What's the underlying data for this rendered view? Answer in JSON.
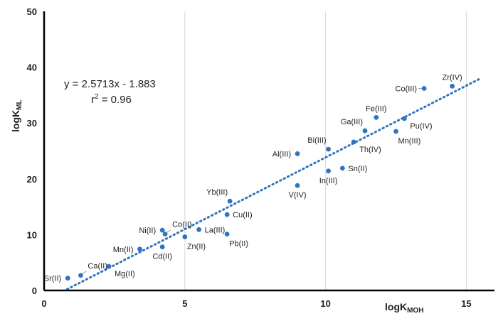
{
  "chart_data": {
    "type": "scatter",
    "xlabel_main": "logK",
    "xlabel_sub": "MOH",
    "ylabel_main": "logK",
    "ylabel_sub": "ML",
    "xlim": [
      0,
      16
    ],
    "ylim": [
      0,
      50
    ],
    "xticks": [
      0,
      5,
      10,
      15
    ],
    "yticks": [
      0,
      10,
      20,
      30,
      40,
      50
    ],
    "grid": "vertical",
    "equation": "y = 2.5713x - 1.883",
    "r2_main": "r",
    "r2_sup": "2",
    "r2_value": " = 0.96",
    "trendline": {
      "slope": 2.5713,
      "intercept": -1.883,
      "x_start": 0.82,
      "x_end": 15.53,
      "style": "dotted"
    },
    "colors": {
      "point": "#2e74c0",
      "trend": "#2e74c0",
      "axis": "#000000",
      "grid": "#d9d9d9"
    },
    "points": [
      {
        "label": "Sr(II)",
        "x": 0.84,
        "y": 2.2,
        "pos": "left"
      },
      {
        "label": "Ca(II)",
        "x": 1.3,
        "y": 2.7,
        "pos": "callout"
      },
      {
        "label": "Mg(II)",
        "x": 2.3,
        "y": 4.3,
        "pos": "right-below"
      },
      {
        "label": "Mn(II)",
        "x": 3.4,
        "y": 7.4,
        "pos": "left"
      },
      {
        "label": "Cd(II)",
        "x": 4.2,
        "y": 7.8,
        "pos": "below"
      },
      {
        "label": "Ni(II)",
        "x": 4.2,
        "y": 10.8,
        "pos": "left"
      },
      {
        "label": "Co(II)",
        "x": 4.3,
        "y": 10.1,
        "pos": "callout"
      },
      {
        "label": "Zn(II)",
        "x": 5.0,
        "y": 9.6,
        "pos": "below-right"
      },
      {
        "label": "La(III)",
        "x": 5.5,
        "y": 10.9,
        "pos": "right"
      },
      {
        "label": "Pb(II)",
        "x": 6.5,
        "y": 10.1,
        "pos": "below-right"
      },
      {
        "label": "Cu(II)",
        "x": 6.5,
        "y": 13.6,
        "pos": "right"
      },
      {
        "label": "Yb(III)",
        "x": 6.6,
        "y": 16.0,
        "pos": "above-left"
      },
      {
        "label": "V(IV)",
        "x": 9.0,
        "y": 18.8,
        "pos": "below"
      },
      {
        "label": "Al(III)",
        "x": 9.0,
        "y": 24.5,
        "pos": "left"
      },
      {
        "label": "Bi(III)",
        "x": 10.1,
        "y": 25.3,
        "pos": "above-left"
      },
      {
        "label": "In(III)",
        "x": 10.1,
        "y": 21.4,
        "pos": "below"
      },
      {
        "label": "Sn(II)",
        "x": 10.6,
        "y": 21.9,
        "pos": "right"
      },
      {
        "label": "Th(IV)",
        "x": 11.0,
        "y": 26.6,
        "pos": "right-below"
      },
      {
        "label": "Ga(III)",
        "x": 11.4,
        "y": 28.6,
        "pos": "above-left"
      },
      {
        "label": "Fe(III)",
        "x": 11.8,
        "y": 31.0,
        "pos": "above"
      },
      {
        "label": "Mn(III)",
        "x": 12.5,
        "y": 28.5,
        "pos": "below-right"
      },
      {
        "label": "Pu(IV)",
        "x": 12.8,
        "y": 30.8,
        "pos": "right-below"
      },
      {
        "label": "Co(III)",
        "x": 13.5,
        "y": 36.2,
        "pos": "callout-left"
      },
      {
        "label": "Zr(IV)",
        "x": 14.5,
        "y": 36.6,
        "pos": "above"
      }
    ]
  }
}
